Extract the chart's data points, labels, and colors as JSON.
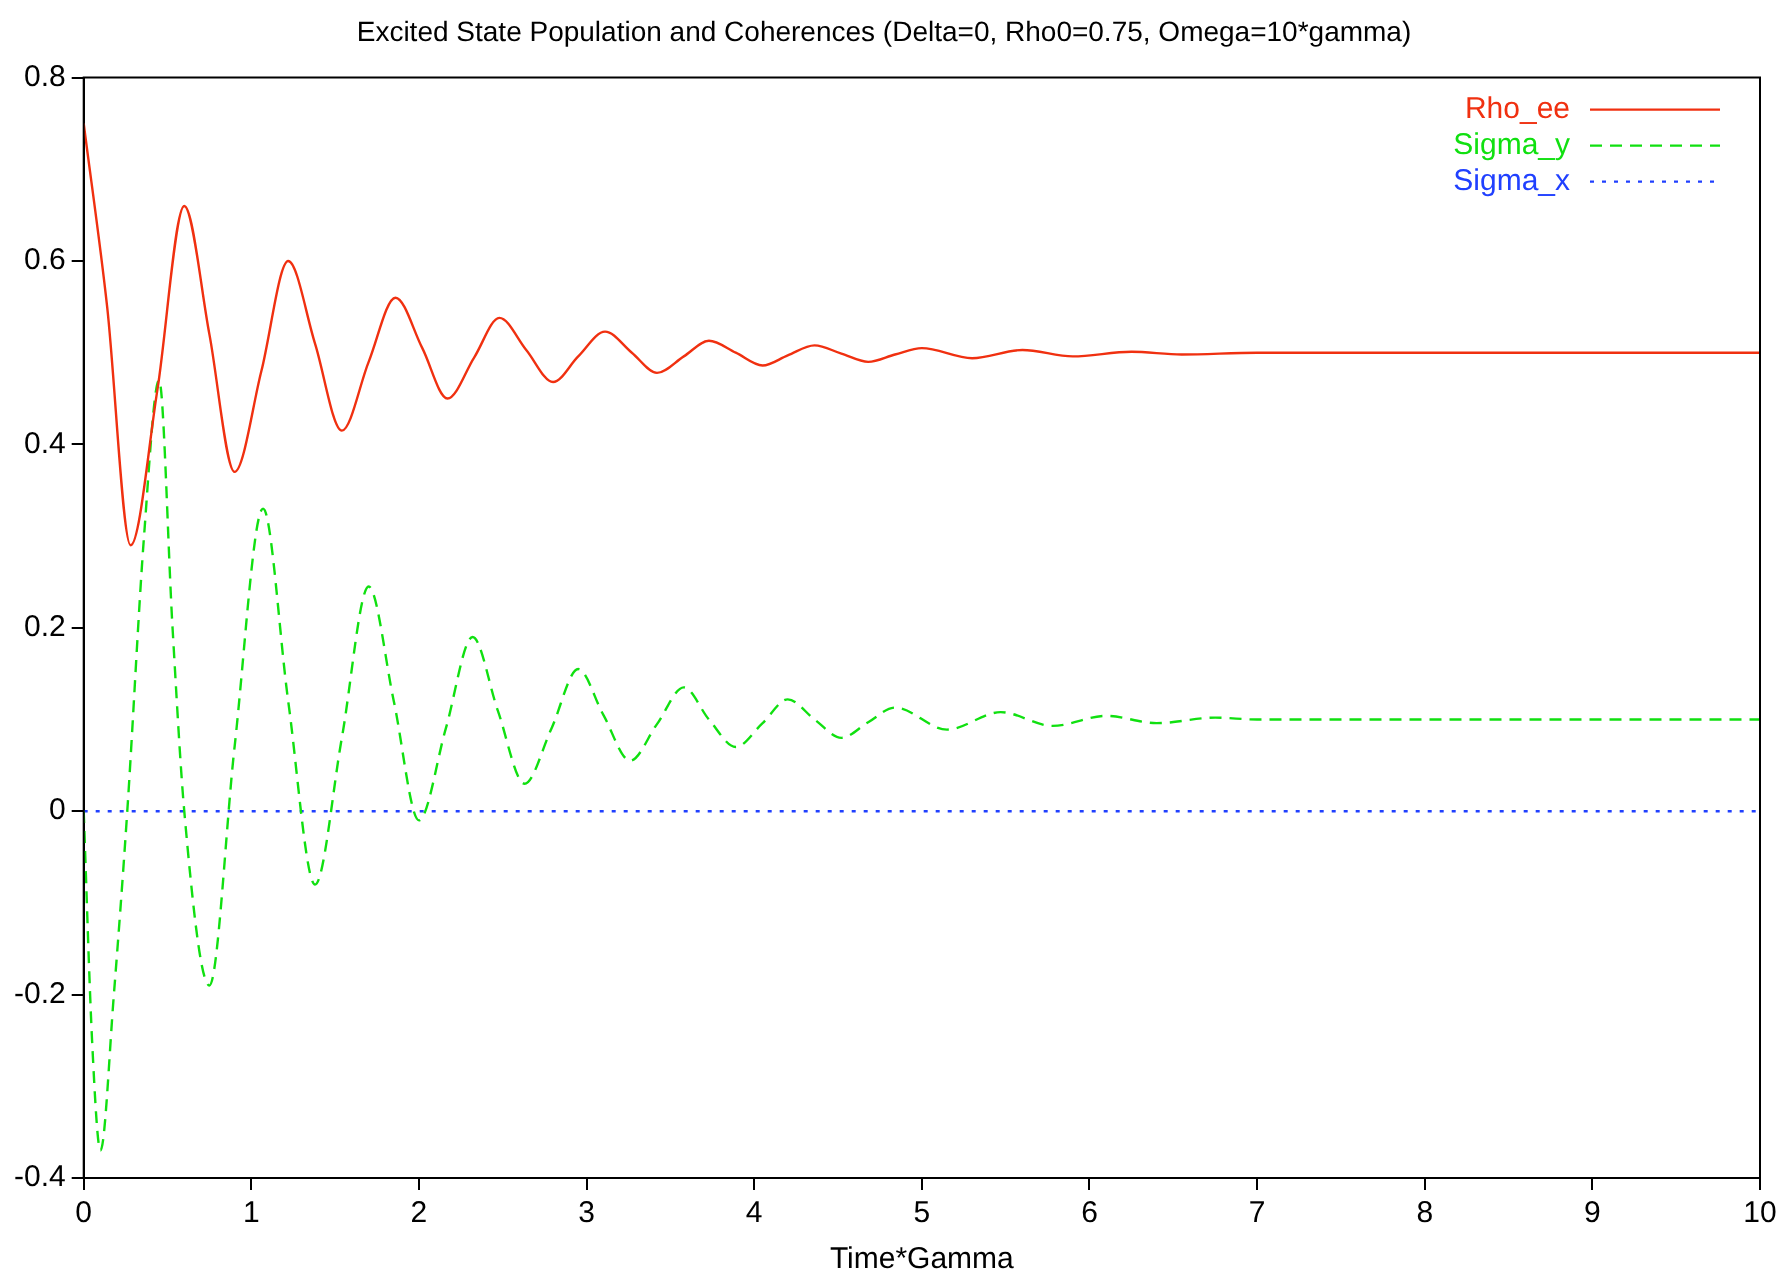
{
  "chart_data": {
    "type": "line",
    "title": "Excited State Population and Coherences (Delta=0, Rho0=0.75, Omega=10*gamma)",
    "xlabel": "Time*Gamma",
    "xlim": [
      0,
      10
    ],
    "xticks": [
      0,
      1,
      2,
      3,
      4,
      5,
      6,
      7,
      8,
      9,
      10
    ],
    "ylim": [
      -0.4,
      0.8
    ],
    "yticks": [
      -0.4,
      -0.2,
      0,
      0.2,
      0.4,
      0.6,
      0.8
    ],
    "grid": false,
    "legend": "top right",
    "marker": "none",
    "series": [
      {
        "name": "Rho_ee",
        "color": "#f03010",
        "line_style": "solid",
        "x": [
          0,
          0.14,
          0.28,
          0.44,
          0.6,
          0.75,
          0.9,
          1.06,
          1.22,
          1.38,
          1.54,
          1.7,
          1.86,
          2.02,
          2.17,
          2.33,
          2.48,
          2.64,
          2.8,
          2.95,
          3.11,
          3.27,
          3.42,
          3.58,
          3.73,
          3.89,
          4.05,
          4.2,
          4.36,
          4.52,
          4.68,
          4.84,
          5.0,
          5.3,
          5.6,
          5.9,
          6.25,
          6.55,
          7,
          8,
          9,
          10
        ],
        "values": [
          0.75,
          0.55,
          0.29,
          0.46,
          0.66,
          0.52,
          0.37,
          0.48,
          0.6,
          0.51,
          0.415,
          0.49,
          0.56,
          0.505,
          0.45,
          0.495,
          0.538,
          0.503,
          0.468,
          0.496,
          0.523,
          0.5,
          0.478,
          0.496,
          0.513,
          0.5,
          0.486,
          0.497,
          0.508,
          0.499,
          0.49,
          0.498,
          0.505,
          0.494,
          0.503,
          0.496,
          0.501,
          0.498,
          0.5,
          0.5,
          0.5,
          0.5
        ]
      },
      {
        "name": "Sigma_y",
        "color": "#10e010",
        "line_style": "dashed",
        "x": [
          0,
          0.05,
          0.1,
          0.18,
          0.26,
          0.36,
          0.45,
          0.53,
          0.6,
          0.75,
          0.9,
          1.07,
          1.22,
          1.38,
          1.54,
          1.7,
          1.85,
          2.0,
          2.16,
          2.32,
          2.47,
          2.63,
          2.79,
          2.95,
          3.1,
          3.26,
          3.42,
          3.58,
          3.73,
          3.89,
          4.05,
          4.2,
          4.36,
          4.52,
          4.68,
          4.84,
          5.15,
          5.47,
          5.78,
          6.1,
          6.4,
          6.75,
          7,
          8,
          9,
          10
        ],
        "values": [
          0,
          -0.25,
          -0.37,
          -0.2,
          0,
          0.3,
          0.47,
          0.2,
          0,
          -0.19,
          0.07,
          0.33,
          0.12,
          -0.08,
          0.08,
          0.245,
          0.12,
          -0.01,
          0.09,
          0.19,
          0.11,
          0.03,
          0.09,
          0.155,
          0.105,
          0.055,
          0.095,
          0.135,
          0.1,
          0.07,
          0.096,
          0.122,
          0.1,
          0.08,
          0.097,
          0.113,
          0.089,
          0.108,
          0.093,
          0.104,
          0.096,
          0.102,
          0.1,
          0.1,
          0.1,
          0.1
        ]
      },
      {
        "name": "Sigma_x",
        "color": "#2040ff",
        "line_style": "dotted",
        "x": [
          0,
          10
        ],
        "values": [
          0,
          0
        ]
      }
    ]
  }
}
